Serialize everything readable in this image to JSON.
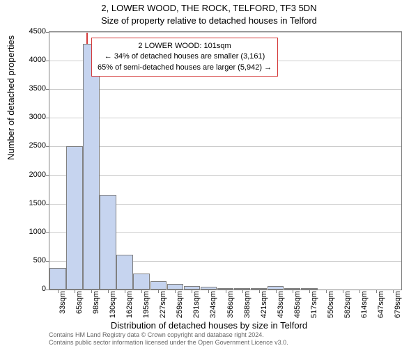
{
  "chart": {
    "type": "histogram",
    "title": "2, LOWER WOOD, THE ROCK, TELFORD, TF3 5DN",
    "subtitle": "Size of property relative to detached houses in Telford",
    "y_label": "Number of detached properties",
    "x_label": "Distribution of detached houses by size in Telford",
    "y_ticks": [
      0,
      500,
      1000,
      1500,
      2000,
      2500,
      3000,
      3500,
      4000,
      4500
    ],
    "ylim_max": 4500,
    "x_ticks": [
      "33sqm",
      "65sqm",
      "98sqm",
      "130sqm",
      "162sqm",
      "195sqm",
      "227sqm",
      "259sqm",
      "291sqm",
      "324sqm",
      "356sqm",
      "388sqm",
      "421sqm",
      "453sqm",
      "485sqm",
      "517sqm",
      "550sqm",
      "582sqm",
      "614sqm",
      "647sqm",
      "679sqm"
    ],
    "bars": [
      380,
      2500,
      4290,
      1650,
      610,
      280,
      150,
      100,
      60,
      50,
      30,
      20,
      10,
      60,
      5,
      5,
      0,
      0,
      0,
      0,
      0
    ],
    "bar_fill": "#c6d4ef",
    "bar_border": "#808080",
    "grid_color": "#cccccc",
    "marker": {
      "x_position_pct": 10.5,
      "color": "#d43a3a"
    },
    "annotation": {
      "line1": "2 LOWER WOOD: 101sqm",
      "line2": "← 34% of detached houses are smaller (3,161)",
      "line3": "65% of semi-detached houses are larger (5,942) →",
      "border_color": "#d43a3a"
    },
    "footer": {
      "line1": "Contains HM Land Registry data © Crown copyright and database right 2024.",
      "line2": "Contains public sector information licensed under the Open Government Licence v3.0."
    }
  }
}
